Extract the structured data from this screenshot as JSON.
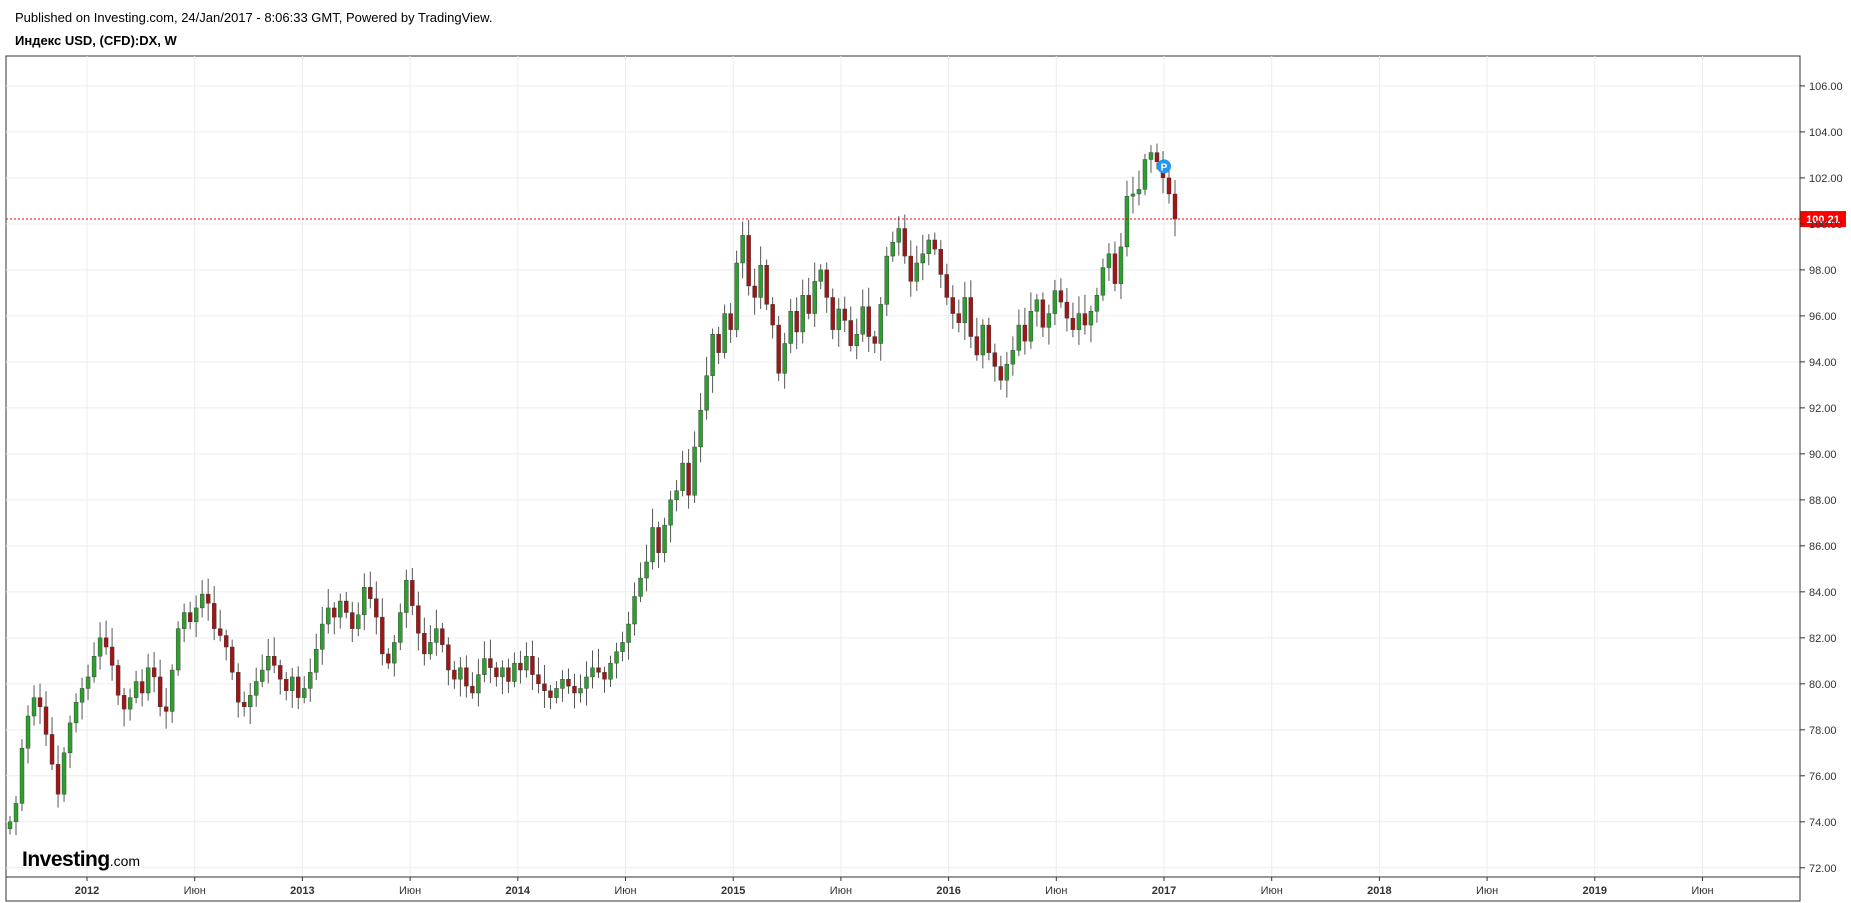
{
  "header": {
    "published": "Published on Investing.com, 24/Jan/2017 - 8:06:33 GMT, Powered by TradingView.",
    "symbol": "Индекс USD, (CFD):DX, W"
  },
  "logo": {
    "main": "Investing",
    "suffix": ".com"
  },
  "colors": {
    "up": "#2ca02c",
    "down": "#a31515",
    "grid": "#ececec",
    "last_price": "#ff0000",
    "marker": "#2196f3"
  },
  "chart_data": {
    "type": "candlestick",
    "interval": "weekly",
    "ylim": [
      71.6,
      107.3
    ],
    "y_ticks": [
      "72.00",
      "74.00",
      "76.00",
      "78.00",
      "80.00",
      "82.00",
      "84.00",
      "86.00",
      "88.00",
      "90.00",
      "92.00",
      "94.00",
      "96.00",
      "98.00",
      "100.00",
      "102.00",
      "104.00",
      "106.00"
    ],
    "x_ticks": [
      {
        "label": "2012",
        "bold": true
      },
      {
        "label": "Июн",
        "bold": false
      },
      {
        "label": "2013",
        "bold": true
      },
      {
        "label": "Июн",
        "bold": false
      },
      {
        "label": "2014",
        "bold": true
      },
      {
        "label": "Июн",
        "bold": false
      },
      {
        "label": "2015",
        "bold": true
      },
      {
        "label": "Июн",
        "bold": false
      },
      {
        "label": "2016",
        "bold": true
      },
      {
        "label": "Июн",
        "bold": false
      },
      {
        "label": "2017",
        "bold": true
      },
      {
        "label": "Июн",
        "bold": false
      },
      {
        "label": "2018",
        "bold": true
      },
      {
        "label": "Июн",
        "bold": false
      },
      {
        "label": "2019",
        "bold": true
      },
      {
        "label": "Июн",
        "bold": false
      }
    ],
    "last_price": "100.21",
    "last_price_value": 100.21,
    "marker_label": "P",
    "marker_value": 102.5,
    "closes": [
      74.0,
      74.8,
      77.2,
      78.6,
      79.4,
      79.0,
      77.8,
      76.5,
      75.2,
      77.0,
      78.3,
      79.2,
      79.8,
      80.3,
      81.2,
      82.0,
      81.6,
      80.8,
      79.5,
      78.9,
      79.4,
      80.1,
      79.6,
      80.7,
      80.3,
      79.0,
      78.8,
      80.6,
      82.4,
      83.1,
      82.7,
      83.3,
      83.9,
      83.5,
      82.4,
      82.1,
      81.6,
      80.5,
      79.2,
      79.0,
      79.5,
      80.1,
      80.6,
      81.2,
      80.8,
      80.2,
      79.7,
      80.3,
      79.4,
      79.8,
      80.5,
      81.5,
      82.6,
      83.3,
      82.9,
      83.6,
      83.1,
      82.4,
      83.0,
      84.2,
      83.7,
      82.9,
      81.3,
      80.9,
      81.8,
      83.1,
      84.5,
      83.4,
      82.2,
      81.3,
      81.8,
      82.4,
      81.7,
      80.6,
      80.2,
      80.7,
      79.9,
      79.6,
      80.4,
      81.1,
      80.7,
      80.3,
      80.7,
      80.1,
      80.9,
      80.6,
      81.2,
      80.4,
      80.0,
      79.7,
      79.4,
      79.8,
      80.2,
      79.9,
      79.6,
      79.8,
      80.3,
      80.7,
      80.5,
      80.2,
      80.9,
      81.4,
      81.8,
      82.6,
      83.8,
      84.6,
      85.3,
      86.8,
      85.7,
      86.9,
      88.0,
      88.4,
      89.6,
      88.2,
      90.3,
      91.9,
      93.4,
      95.2,
      94.4,
      96.1,
      95.4,
      98.3,
      99.5,
      97.3,
      96.8,
      98.2,
      96.5,
      95.6,
      93.5,
      94.8,
      96.2,
      95.3,
      96.9,
      96.1,
      97.5,
      98.0,
      96.8,
      95.4,
      96.3,
      95.8,
      94.7,
      95.2,
      96.4,
      95.1,
      94.8,
      96.5,
      98.6,
      99.2,
      99.8,
      98.6,
      97.5,
      98.3,
      98.7,
      99.3,
      98.9,
      97.8,
      96.8,
      96.1,
      95.7,
      96.8,
      95.1,
      94.3,
      95.6,
      94.4,
      93.8,
      93.2,
      93.9,
      94.5,
      95.6,
      94.9,
      96.2,
      96.7,
      95.5,
      96.1,
      97.1,
      96.6,
      95.9,
      95.4,
      96.1,
      95.6,
      96.2,
      96.9,
      98.1,
      98.7,
      97.4,
      99.0,
      101.2,
      101.3,
      101.5,
      102.8,
      103.1,
      102.7,
      102.0,
      101.3,
      100.21
    ]
  }
}
